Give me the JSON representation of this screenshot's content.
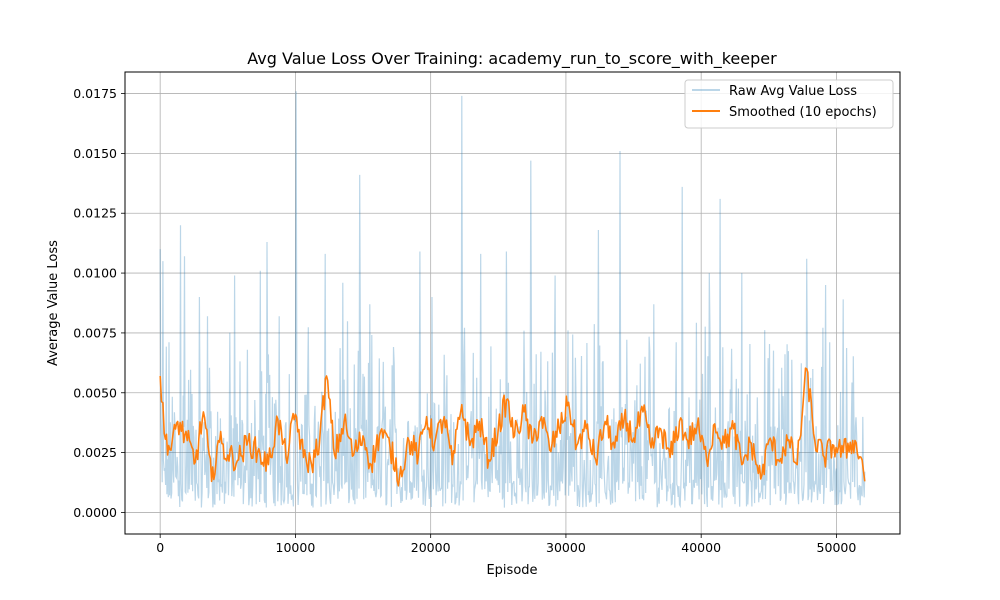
{
  "chart_data": {
    "type": "line",
    "title": "Avg Value Loss Over Training: academy_run_to_score_with_keeper",
    "xlabel": "Episode",
    "ylabel": "Average Value Loss",
    "xlim": [
      -2600,
      54700
    ],
    "ylim": [
      -0.0009,
      0.0184
    ],
    "xticks": [
      0,
      10000,
      20000,
      30000,
      40000,
      50000
    ],
    "xtick_labels": [
      "0",
      "10000",
      "20000",
      "30000",
      "40000",
      "50000"
    ],
    "yticks": [
      0.0,
      0.0025,
      0.005,
      0.0075,
      0.01,
      0.0125,
      0.015,
      0.0175
    ],
    "ytick_labels": [
      "0.0000",
      "0.0025",
      "0.0050",
      "0.0075",
      "0.0100",
      "0.0125",
      "0.0150",
      "0.0175"
    ],
    "grid": true,
    "legend_position": "top-right",
    "x_range": [
      0,
      52100
    ],
    "series": [
      {
        "name": "Raw Avg Value Loss",
        "color": "#1f77b4",
        "alpha": 0.3,
        "peaks": [
          [
            0,
            0.011
          ],
          [
            200,
            0.0105
          ],
          [
            1500,
            0.012
          ],
          [
            1800,
            0.0107
          ],
          [
            2900,
            0.009
          ],
          [
            3500,
            0.0082
          ],
          [
            5500,
            0.0099
          ],
          [
            7400,
            0.0101
          ],
          [
            7900,
            0.0113
          ],
          [
            8800,
            0.0082
          ],
          [
            10050,
            0.0176
          ],
          [
            12200,
            0.0108
          ],
          [
            13500,
            0.0096
          ],
          [
            14750,
            0.0141
          ],
          [
            15500,
            0.0087
          ],
          [
            19200,
            0.0109
          ],
          [
            20100,
            0.009
          ],
          [
            22300,
            0.0174
          ],
          [
            23700,
            0.0108
          ],
          [
            25600,
            0.0109
          ],
          [
            27400,
            0.0147
          ],
          [
            29200,
            0.0099
          ],
          [
            32400,
            0.0118
          ],
          [
            34000,
            0.0151
          ],
          [
            36500,
            0.0087
          ],
          [
            38600,
            0.0136
          ],
          [
            40600,
            0.01
          ],
          [
            41400,
            0.0131
          ],
          [
            43000,
            0.01
          ],
          [
            47800,
            0.0106
          ],
          [
            49200,
            0.0095
          ],
          [
            50500,
            0.0089
          ]
        ]
      },
      {
        "name": "Smoothed (10 epochs)",
        "color": "#ff7f0e",
        "points": [
          [
            0,
            0.0057
          ],
          [
            300,
            0.0033
          ],
          [
            800,
            0.0026
          ],
          [
            1300,
            0.0038
          ],
          [
            2000,
            0.003
          ],
          [
            2600,
            0.0021
          ],
          [
            3200,
            0.0042
          ],
          [
            3800,
            0.0013
          ],
          [
            4300,
            0.003
          ],
          [
            5000,
            0.0024
          ],
          [
            5800,
            0.0022
          ],
          [
            6500,
            0.003
          ],
          [
            7200,
            0.0025
          ],
          [
            8000,
            0.002
          ],
          [
            8700,
            0.0039
          ],
          [
            9300,
            0.0023
          ],
          [
            10000,
            0.0041
          ],
          [
            10600,
            0.0023
          ],
          [
            11200,
            0.002
          ],
          [
            11800,
            0.0031
          ],
          [
            12300,
            0.0057
          ],
          [
            12900,
            0.0024
          ],
          [
            13600,
            0.0038
          ],
          [
            14300,
            0.0024
          ],
          [
            15000,
            0.0032
          ],
          [
            15600,
            0.002
          ],
          [
            16300,
            0.0034
          ],
          [
            17000,
            0.0027
          ],
          [
            17700,
            0.0015
          ],
          [
            18400,
            0.003
          ],
          [
            19100,
            0.0024
          ],
          [
            19700,
            0.004
          ],
          [
            20300,
            0.0029
          ],
          [
            21000,
            0.004
          ],
          [
            21600,
            0.002
          ],
          [
            22300,
            0.0045
          ],
          [
            22900,
            0.0028
          ],
          [
            23600,
            0.0038
          ],
          [
            24300,
            0.0022
          ],
          [
            25000,
            0.0035
          ],
          [
            25600,
            0.0047
          ],
          [
            26200,
            0.0032
          ],
          [
            26900,
            0.0042
          ],
          [
            27500,
            0.0029
          ],
          [
            28200,
            0.004
          ],
          [
            28800,
            0.0026
          ],
          [
            29500,
            0.0035
          ],
          [
            30200,
            0.0046
          ],
          [
            30800,
            0.0028
          ],
          [
            31500,
            0.0035
          ],
          [
            32200,
            0.0022
          ],
          [
            32900,
            0.0038
          ],
          [
            33600,
            0.0027
          ],
          [
            34300,
            0.0039
          ],
          [
            35000,
            0.0031
          ],
          [
            35700,
            0.0042
          ],
          [
            36300,
            0.0027
          ],
          [
            37000,
            0.0035
          ],
          [
            37700,
            0.0023
          ],
          [
            38400,
            0.0038
          ],
          [
            39000,
            0.003
          ],
          [
            39700,
            0.0036
          ],
          [
            40400,
            0.0022
          ],
          [
            41000,
            0.0037
          ],
          [
            41700,
            0.0029
          ],
          [
            42400,
            0.0035
          ],
          [
            43000,
            0.002
          ],
          [
            43700,
            0.0029
          ],
          [
            44400,
            0.0014
          ],
          [
            45100,
            0.0031
          ],
          [
            45700,
            0.0022
          ],
          [
            46400,
            0.003
          ],
          [
            47100,
            0.002
          ],
          [
            47800,
            0.006
          ],
          [
            48400,
            0.003
          ],
          [
            49100,
            0.0023
          ],
          [
            49800,
            0.0028
          ],
          [
            50500,
            0.0025
          ],
          [
            51200,
            0.003
          ],
          [
            51900,
            0.0022
          ],
          [
            52100,
            0.0013
          ]
        ]
      }
    ]
  }
}
